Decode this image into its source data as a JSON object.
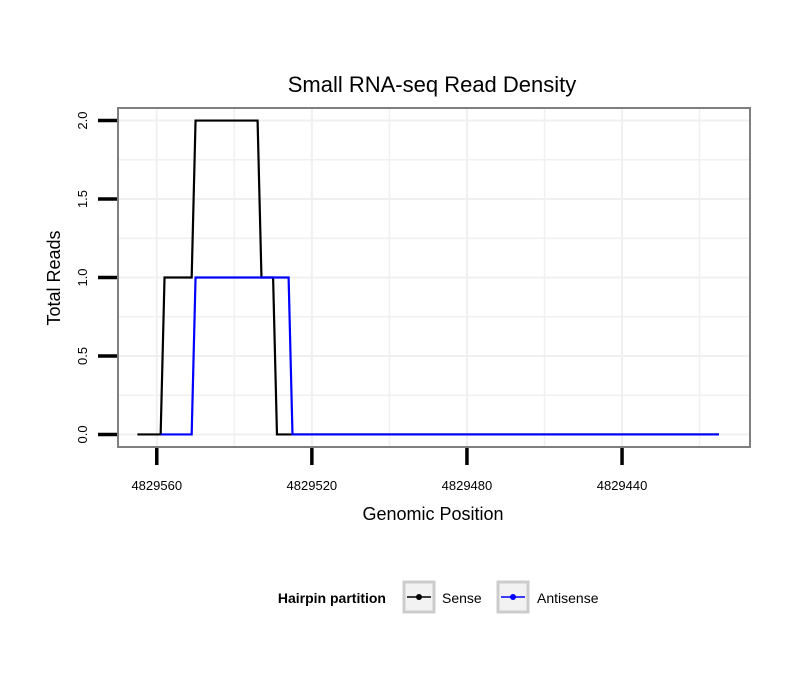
{
  "colors": {
    "sense": "#000000",
    "antisense": "#0000ff",
    "panel_border": "#7f7f7f",
    "grid": "#f0f0f0",
    "legend_key_border": "#cccccc"
  },
  "chart_data": {
    "type": "line",
    "title": "Small RNA-seq Read Density",
    "xlabel": "Genomic Position",
    "ylabel": "Total Reads",
    "x_reversed": true,
    "xlim": [
      4829570,
      4829407
    ],
    "ylim": [
      -0.08,
      2.08
    ],
    "x_ticks": [
      4829560,
      4829520,
      4829480,
      4829440
    ],
    "x_tick_labels": [
      "4829560",
      "4829520",
      "4829480",
      "4829440"
    ],
    "x_minor_ticks": [
      4829540,
      4829500,
      4829460,
      4829420
    ],
    "y_ticks": [
      0.0,
      0.5,
      1.0,
      1.5,
      2.0
    ],
    "y_tick_labels": [
      "0.0",
      "0.5",
      "1.0",
      "1.5",
      "2.0"
    ],
    "y_minor_ticks": [
      0.25,
      0.75,
      1.25,
      1.75
    ],
    "grid": true,
    "series": [
      {
        "name": "Sense",
        "color_key": "sense",
        "x": [
          4829565,
          4829559,
          4829558,
          4829551,
          4829550,
          4829534,
          4829533,
          4829530,
          4829529,
          4829415
        ],
        "y": [
          0,
          0,
          1,
          1,
          2,
          2,
          1,
          1,
          0,
          0
        ]
      },
      {
        "name": "Antisense",
        "color_key": "antisense",
        "x": [
          4829559,
          4829551,
          4829550,
          4829526,
          4829525,
          4829415
        ],
        "y": [
          0,
          0,
          1,
          1,
          0,
          0
        ]
      }
    ],
    "legend": {
      "title": "Hairpin partition",
      "position": "bottom",
      "entries": [
        "Sense",
        "Antisense"
      ]
    }
  }
}
